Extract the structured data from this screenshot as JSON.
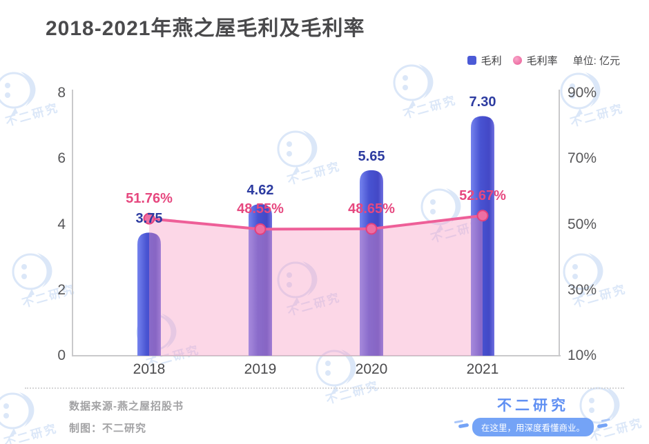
{
  "title": "2018-2021年燕之屋毛利及毛利率",
  "legend": {
    "series1": "毛利",
    "series2": "毛利率",
    "unit_label": "单位: 亿元"
  },
  "chart_data": {
    "type": "bar",
    "title": "2018-2021年燕之屋毛利及毛利率",
    "categories": [
      "2018",
      "2019",
      "2020",
      "2021"
    ],
    "series": [
      {
        "name": "毛利",
        "type": "bar",
        "axis": "left",
        "unit": "亿元",
        "values": [
          3.75,
          4.62,
          5.65,
          7.3
        ]
      },
      {
        "name": "毛利率",
        "type": "line",
        "axis": "right",
        "unit": "%",
        "values": [
          51.76,
          48.55,
          48.65,
          52.67
        ]
      }
    ],
    "bar_labels": [
      "3.75",
      "4.62",
      "5.65",
      "7.30"
    ],
    "line_labels": [
      "51.76%",
      "48.55%",
      "48.65%",
      "52.67%"
    ],
    "left_axis": {
      "ticks": [
        "0",
        "2",
        "4",
        "6",
        "8"
      ],
      "range": [
        0,
        8
      ]
    },
    "right_axis": {
      "ticks": [
        "10%",
        "30%",
        "50%",
        "70%",
        "90%"
      ],
      "range": [
        10,
        90
      ]
    },
    "grid": false,
    "legend_position": "top-right"
  },
  "footer": {
    "source": "数据来源-燕之屋招股书",
    "credit": "制图：不二研究",
    "brand": "不二研究",
    "slogan": "在这里，用深度看懂商业。"
  },
  "watermark_text": "不二研究",
  "colors": {
    "bar_blue": "#4b5ad6",
    "bar_label": "#2c3ba0",
    "line_pink": "#ee5f98",
    "dot_pink": "#ee6fa3",
    "area_pink": "rgba(246,151,193,0.38)",
    "percent_label": "#e6487f",
    "title_gray": "#4a4a4c",
    "axis_gray": "#c9c9cb",
    "footer_gray": "#a2a2a4",
    "brand_blue": "#6090f3",
    "watermark_blue": "#dbe7f8"
  }
}
